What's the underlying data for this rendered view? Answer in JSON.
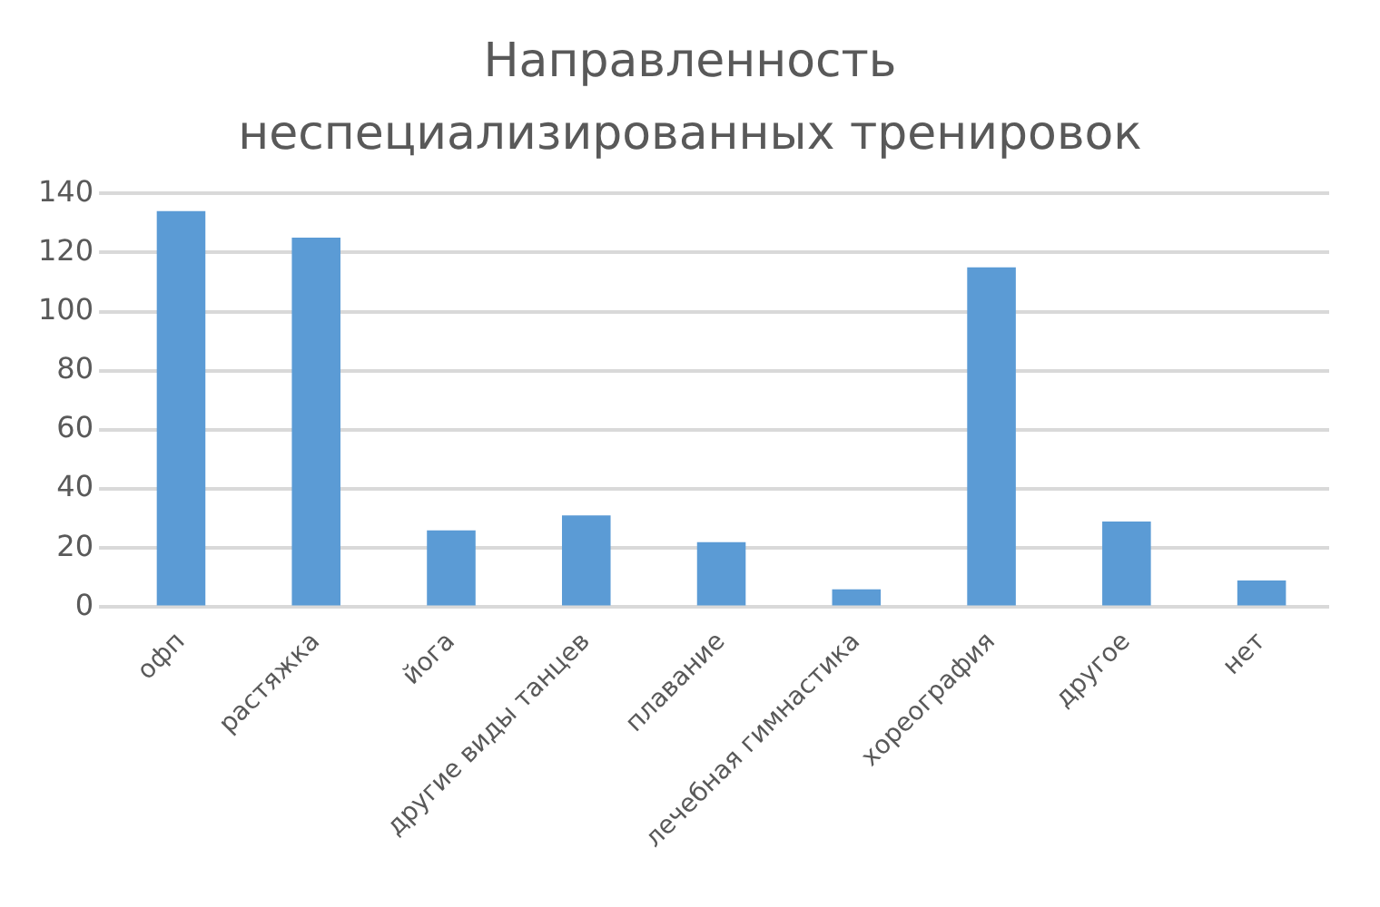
{
  "chart_data": {
    "type": "bar",
    "title": "Направленность неспециализированных тренировок",
    "categories": [
      "офп",
      "растяжка",
      "йога",
      "другие виды танцев",
      "плавание",
      "лечебная гимнастика",
      "хореография",
      "другое",
      "нет"
    ],
    "values": [
      134,
      125,
      26,
      31,
      22,
      6,
      115,
      29,
      9
    ],
    "color": "#5b9bd5",
    "ylim": [
      0,
      140
    ],
    "yticks": [
      0,
      20,
      40,
      60,
      80,
      100,
      120,
      140
    ],
    "grid": "y"
  }
}
